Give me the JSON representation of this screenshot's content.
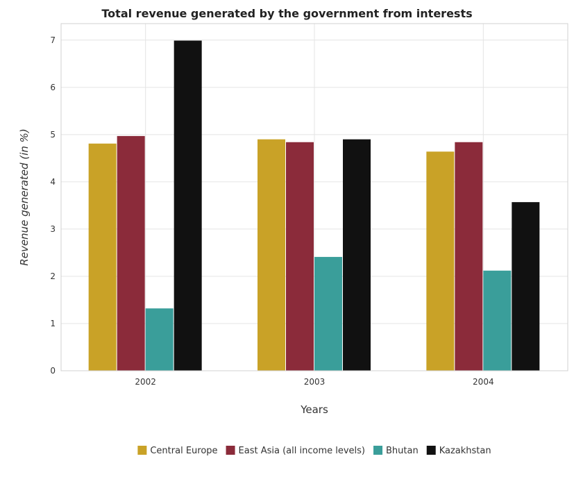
{
  "chart_data": {
    "type": "bar",
    "title": "Total revenue generated by the government from interests",
    "xlabel": "Years",
    "ylabel": "Revenue generated (in %)",
    "categories": [
      "2002",
      "2003",
      "2004"
    ],
    "ylim": [
      0,
      7.35
    ],
    "yticks": [
      0,
      1,
      2,
      3,
      4,
      5,
      6,
      7
    ],
    "grid": true,
    "legend_position": "bottom-center",
    "series": [
      {
        "name": "Central Europe",
        "color": "#c9a227",
        "values": [
          4.81,
          4.9,
          4.64
        ]
      },
      {
        "name": "East Asia (all income levels)",
        "color": "#8b2b3a",
        "values": [
          4.97,
          4.84,
          4.84
        ]
      },
      {
        "name": "Bhutan",
        "color": "#3a9e9a",
        "values": [
          1.32,
          2.41,
          2.12
        ]
      },
      {
        "name": "Kazakhstan",
        "color": "#111111",
        "values": [
          6.99,
          4.9,
          3.57
        ]
      }
    ]
  }
}
